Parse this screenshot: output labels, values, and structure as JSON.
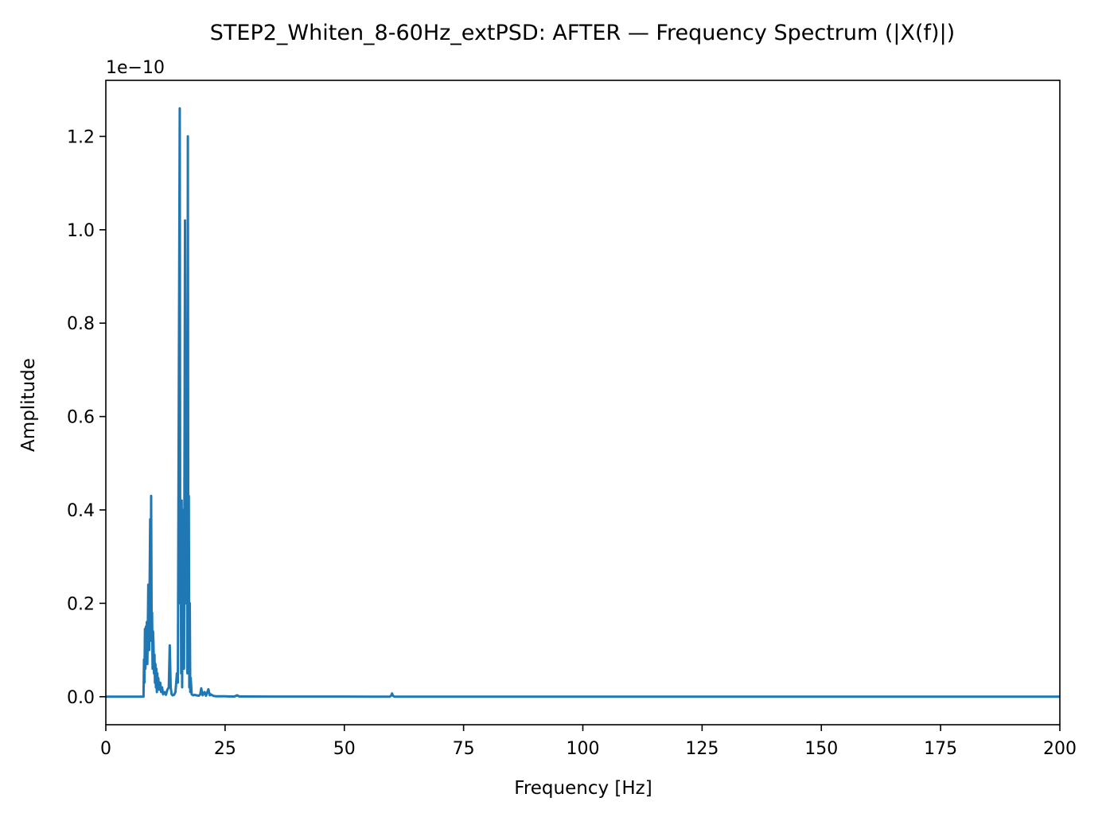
{
  "chart_data": {
    "type": "line",
    "title": "STEP2_Whiten_8-60Hz_extPSD: AFTER — Frequency Spectrum (|X(f)|)",
    "xlabel": "Frequency [Hz]",
    "ylabel": "Amplitude",
    "y_offset_label": "1e−10",
    "xlim": [
      0,
      200
    ],
    "ylim": [
      -0.06,
      1.32
    ],
    "x_ticks": [
      0,
      25,
      50,
      75,
      100,
      125,
      150,
      175,
      200
    ],
    "x_tick_labels": [
      "0",
      "25",
      "50",
      "75",
      "100",
      "125",
      "150",
      "175",
      "200"
    ],
    "y_ticks": [
      0.0,
      0.2,
      0.4,
      0.6,
      0.8,
      1.0,
      1.2
    ],
    "y_tick_labels": [
      "0.0",
      "0.2",
      "0.4",
      "0.6",
      "0.8",
      "1.0",
      "1.2"
    ],
    "grid": false,
    "series_color": "#1f77b4",
    "series": [
      {
        "x": [
          0,
          7.8,
          7.9,
          8.0,
          8.1,
          8.2,
          8.3,
          8.4,
          8.5,
          8.6,
          8.7,
          8.8,
          8.9,
          9.0,
          9.1,
          9.2,
          9.3,
          9.4,
          9.5,
          9.6,
          9.7,
          9.8,
          9.9,
          10.0,
          10.1,
          10.2,
          10.3,
          10.4,
          10.5,
          10.6,
          10.7,
          10.8,
          10.9,
          11.0,
          11.2,
          11.4,
          11.6,
          11.8,
          12.0,
          12.3,
          12.6,
          12.9,
          13.2,
          13.4,
          13.6,
          13.8,
          14.0,
          14.3,
          14.6,
          14.9,
          15.1,
          15.3,
          15.5,
          15.6,
          15.7,
          15.8,
          15.9,
          16.0,
          16.2,
          16.4,
          16.6,
          16.8,
          17.0,
          17.1,
          17.2,
          17.3,
          17.4,
          17.5,
          17.6,
          17.7,
          17.8,
          18.0,
          18.3,
          18.6,
          19.0,
          19.5,
          19.8,
          20.0,
          20.3,
          20.7,
          21.0,
          21.5,
          21.8,
          22.0,
          22.5,
          23.0,
          24.0,
          25.0,
          26.0,
          27.0,
          27.5,
          28.0,
          30.0,
          35.0,
          40.0,
          45.0,
          50.0,
          55.0,
          59.5,
          59.8,
          60.0,
          60.2,
          60.5,
          70.0,
          100.0,
          150.0,
          200.0
        ],
        "y": [
          0.0,
          0.0,
          0.0,
          0.08,
          0.03,
          0.145,
          0.06,
          0.15,
          0.09,
          0.16,
          0.07,
          0.14,
          0.24,
          0.2,
          0.1,
          0.26,
          0.38,
          0.12,
          0.43,
          0.16,
          0.18,
          0.06,
          0.14,
          0.11,
          0.05,
          0.09,
          0.03,
          0.07,
          0.02,
          0.06,
          0.01,
          0.05,
          0.02,
          0.04,
          0.015,
          0.03,
          0.01,
          0.02,
          0.005,
          0.01,
          0.004,
          0.015,
          0.02,
          0.11,
          0.02,
          0.005,
          0.003,
          0.004,
          0.01,
          0.05,
          0.03,
          0.66,
          1.26,
          0.2,
          0.41,
          0.05,
          0.42,
          0.02,
          0.4,
          0.06,
          1.02,
          0.2,
          0.41,
          0.05,
          1.2,
          0.1,
          0.43,
          0.02,
          0.2,
          0.01,
          0.04,
          0.005,
          0.003,
          0.004,
          0.003,
          0.002,
          0.005,
          0.018,
          0.003,
          0.01,
          0.002,
          0.016,
          0.003,
          0.005,
          0.002,
          0.001,
          0.001,
          0.001,
          0.0005,
          0.0005,
          0.003,
          0.0005,
          0.0005,
          0.0003,
          0.0002,
          0.0002,
          0.0002,
          0.0001,
          0.0001,
          0.002,
          0.007,
          0.002,
          0.0001,
          0.0001,
          0.0,
          0.0,
          0.0
        ]
      }
    ]
  }
}
